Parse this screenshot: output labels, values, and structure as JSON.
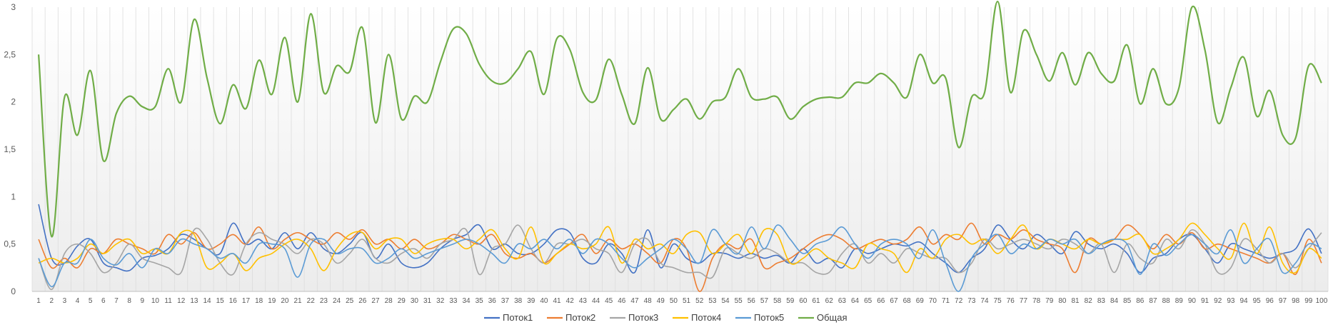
{
  "chart_data": {
    "type": "line",
    "title": "",
    "xlabel": "",
    "ylabel": "",
    "ylim": [
      0,
      3
    ],
    "y_ticks": [
      "0",
      "0,5",
      "1",
      "1,5",
      "2",
      "2,5",
      "3"
    ],
    "y_tick_values": [
      0,
      0.5,
      1,
      1.5,
      2,
      2.5,
      3
    ],
    "categories": [
      "1",
      "2",
      "3",
      "4",
      "5",
      "6",
      "7",
      "8",
      "9",
      "10",
      "11",
      "12",
      "13",
      "14",
      "15",
      "16",
      "17",
      "18",
      "19",
      "20",
      "21",
      "22",
      "23",
      "24",
      "25",
      "26",
      "27",
      "28",
      "29",
      "30",
      "31",
      "32",
      "33",
      "34",
      "35",
      "36",
      "37",
      "38",
      "39",
      "40",
      "41",
      "42",
      "43",
      "44",
      "45",
      "46",
      "47",
      "48",
      "49",
      "50",
      "51",
      "52",
      "53",
      "54",
      "55",
      "56",
      "57",
      "58",
      "59",
      "60",
      "61",
      "62",
      "63",
      "64",
      "65",
      "66",
      "67",
      "68",
      "69",
      "70",
      "71",
      "72",
      "73",
      "74",
      "75",
      "76",
      "77",
      "78",
      "79",
      "80",
      "81",
      "82",
      "83",
      "84",
      "85",
      "86",
      "87",
      "88",
      "89",
      "90",
      "91",
      "92",
      "93",
      "94",
      "95",
      "96",
      "97",
      "98",
      "99",
      "100"
    ],
    "legend_position": "bottom",
    "series": [
      {
        "name": "Поток1",
        "color": "#4472C4",
        "values": [
          0.92,
          0.35,
          0.3,
          0.48,
          0.55,
          0.3,
          0.25,
          0.22,
          0.35,
          0.38,
          0.45,
          0.6,
          0.55,
          0.45,
          0.4,
          0.72,
          0.5,
          0.55,
          0.45,
          0.62,
          0.45,
          0.62,
          0.45,
          0.4,
          0.5,
          0.62,
          0.35,
          0.5,
          0.3,
          0.25,
          0.3,
          0.45,
          0.55,
          0.6,
          0.7,
          0.45,
          0.5,
          0.4,
          0.4,
          0.5,
          0.65,
          0.62,
          0.35,
          0.3,
          0.5,
          0.4,
          0.2,
          0.65,
          0.25,
          0.5,
          0.35,
          0.3,
          0.4,
          0.4,
          0.35,
          0.4,
          0.35,
          0.38,
          0.3,
          0.45,
          0.3,
          0.35,
          0.25,
          0.45,
          0.4,
          0.45,
          0.5,
          0.48,
          0.52,
          0.4,
          0.3,
          0.2,
          0.35,
          0.45,
          0.7,
          0.55,
          0.45,
          0.6,
          0.5,
          0.4,
          0.63,
          0.5,
          0.45,
          0.5,
          0.4,
          0.2,
          0.35,
          0.4,
          0.55,
          0.6,
          0.45,
          0.3,
          0.5,
          0.45,
          0.4,
          0.35,
          0.4,
          0.45,
          0.66,
          0.4
        ]
      },
      {
        "name": "Поток2",
        "color": "#ED7D31",
        "values": [
          0.55,
          0.25,
          0.35,
          0.25,
          0.45,
          0.4,
          0.55,
          0.5,
          0.45,
          0.4,
          0.6,
          0.5,
          0.62,
          0.45,
          0.5,
          0.6,
          0.5,
          0.68,
          0.45,
          0.55,
          0.62,
          0.55,
          0.5,
          0.62,
          0.55,
          0.65,
          0.5,
          0.55,
          0.45,
          0.55,
          0.45,
          0.5,
          0.6,
          0.55,
          0.5,
          0.6,
          0.4,
          0.35,
          0.4,
          0.3,
          0.4,
          0.5,
          0.6,
          0.4,
          0.55,
          0.45,
          0.5,
          0.4,
          0.3,
          0.55,
          0.45,
          0.0,
          0.35,
          0.5,
          0.45,
          0.55,
          0.25,
          0.3,
          0.35,
          0.45,
          0.55,
          0.6,
          0.55,
          0.45,
          0.5,
          0.55,
          0.5,
          0.55,
          0.68,
          0.5,
          0.6,
          0.55,
          0.72,
          0.5,
          0.6,
          0.55,
          0.65,
          0.55,
          0.5,
          0.45,
          0.2,
          0.55,
          0.5,
          0.55,
          0.7,
          0.6,
          0.45,
          0.6,
          0.5,
          0.62,
          0.45,
          0.5,
          0.45,
          0.4,
          0.35,
          0.3,
          0.4,
          0.18,
          0.55,
          0.3
        ]
      },
      {
        "name": "Поток3",
        "color": "#A5A5A5",
        "values": [
          0.35,
          0.02,
          0.4,
          0.5,
          0.4,
          0.2,
          0.3,
          0.5,
          0.35,
          0.3,
          0.25,
          0.2,
          0.65,
          0.55,
          0.3,
          0.18,
          0.5,
          0.62,
          0.55,
          0.5,
          0.4,
          0.55,
          0.5,
          0.3,
          0.4,
          0.55,
          0.35,
          0.3,
          0.4,
          0.45,
          0.35,
          0.5,
          0.55,
          0.65,
          0.18,
          0.45,
          0.5,
          0.7,
          0.45,
          0.3,
          0.5,
          0.5,
          0.55,
          0.45,
          0.4,
          0.2,
          0.5,
          0.55,
          0.3,
          0.25,
          0.2,
          0.2,
          0.15,
          0.45,
          0.4,
          0.35,
          0.45,
          0.4,
          0.3,
          0.3,
          0.2,
          0.2,
          0.4,
          0.5,
          0.3,
          0.4,
          0.3,
          0.45,
          0.4,
          0.35,
          0.35,
          0.2,
          0.3,
          0.55,
          0.45,
          0.5,
          0.55,
          0.5,
          0.45,
          0.55,
          0.5,
          0.4,
          0.5,
          0.2,
          0.5,
          0.35,
          0.3,
          0.55,
          0.45,
          0.65,
          0.5,
          0.2,
          0.25,
          0.55,
          0.45,
          0.3,
          0.4,
          0.25,
          0.45,
          0.62
        ]
      },
      {
        "name": "Поток4",
        "color": "#FFC000",
        "values": [
          0.3,
          0.35,
          0.3,
          0.35,
          0.5,
          0.4,
          0.5,
          0.55,
          0.4,
          0.45,
          0.4,
          0.62,
          0.6,
          0.25,
          0.3,
          0.4,
          0.22,
          0.35,
          0.4,
          0.5,
          0.55,
          0.45,
          0.22,
          0.45,
          0.6,
          0.62,
          0.45,
          0.55,
          0.55,
          0.4,
          0.5,
          0.55,
          0.55,
          0.45,
          0.55,
          0.65,
          0.45,
          0.35,
          0.68,
          0.3,
          0.4,
          0.5,
          0.45,
          0.5,
          0.68,
          0.3,
          0.55,
          0.45,
          0.5,
          0.4,
          0.6,
          0.62,
          0.4,
          0.5,
          0.6,
          0.4,
          0.65,
          0.6,
          0.3,
          0.35,
          0.45,
          0.35,
          0.3,
          0.25,
          0.5,
          0.45,
          0.4,
          0.2,
          0.45,
          0.35,
          0.55,
          0.6,
          0.5,
          0.55,
          0.4,
          0.55,
          0.7,
          0.45,
          0.55,
          0.5,
          0.45,
          0.55,
          0.5,
          0.55,
          0.55,
          0.6,
          0.4,
          0.45,
          0.55,
          0.72,
          0.6,
          0.45,
          0.35,
          0.72,
          0.4,
          0.68,
          0.3,
          0.2,
          0.45,
          0.35
        ]
      },
      {
        "name": "Поток5",
        "color": "#5B9BD5",
        "values": [
          0.35,
          0.05,
          0.3,
          0.3,
          0.55,
          0.35,
          0.28,
          0.4,
          0.25,
          0.45,
          0.4,
          0.55,
          0.5,
          0.45,
          0.35,
          0.4,
          0.3,
          0.5,
          0.5,
          0.45,
          0.15,
          0.5,
          0.55,
          0.4,
          0.45,
          0.45,
          0.3,
          0.35,
          0.45,
          0.35,
          0.4,
          0.45,
          0.5,
          0.55,
          0.5,
          0.4,
          0.3,
          0.5,
          0.45,
          0.55,
          0.45,
          0.55,
          0.4,
          0.55,
          0.5,
          0.35,
          0.25,
          0.35,
          0.45,
          0.55,
          0.45,
          0.3,
          0.65,
          0.5,
          0.4,
          0.68,
          0.45,
          0.7,
          0.55,
          0.4,
          0.5,
          0.55,
          0.68,
          0.5,
          0.35,
          0.5,
          0.55,
          0.5,
          0.35,
          0.65,
          0.3,
          0.0,
          0.35,
          0.5,
          0.6,
          0.4,
          0.5,
          0.45,
          0.55,
          0.5,
          0.55,
          0.4,
          0.5,
          0.55,
          0.5,
          0.18,
          0.5,
          0.38,
          0.5,
          0.6,
          0.5,
          0.4,
          0.65,
          0.3,
          0.45,
          0.55,
          0.2,
          0.3,
          0.5,
          0.45
        ]
      },
      {
        "name": "Общая",
        "color": "#70AD47",
        "values": [
          2.5,
          0.58,
          2.05,
          1.65,
          2.33,
          1.38,
          1.88,
          2.06,
          1.95,
          1.95,
          2.35,
          2.0,
          2.87,
          2.25,
          1.77,
          2.18,
          1.93,
          2.44,
          2.08,
          2.68,
          2.0,
          2.93,
          2.1,
          2.38,
          2.32,
          2.78,
          1.78,
          2.5,
          1.82,
          2.06,
          2.0,
          2.42,
          2.77,
          2.72,
          2.4,
          2.22,
          2.2,
          2.35,
          2.53,
          2.08,
          2.67,
          2.55,
          2.1,
          2.02,
          2.45,
          2.08,
          1.77,
          2.36,
          1.82,
          1.92,
          2.03,
          1.82,
          2.0,
          2.05,
          2.35,
          2.05,
          2.03,
          2.05,
          1.82,
          1.95,
          2.03,
          2.05,
          2.05,
          2.2,
          2.2,
          2.3,
          2.2,
          2.05,
          2.5,
          2.2,
          2.25,
          1.52,
          2.05,
          2.1,
          3.06,
          2.1,
          2.75,
          2.5,
          2.22,
          2.52,
          2.18,
          2.52,
          2.3,
          2.22,
          2.6,
          1.98,
          2.35,
          1.98,
          2.15,
          3.0,
          2.55,
          1.78,
          2.15,
          2.47,
          1.85,
          2.12,
          1.65,
          1.62,
          2.38,
          2.2
        ]
      }
    ]
  }
}
